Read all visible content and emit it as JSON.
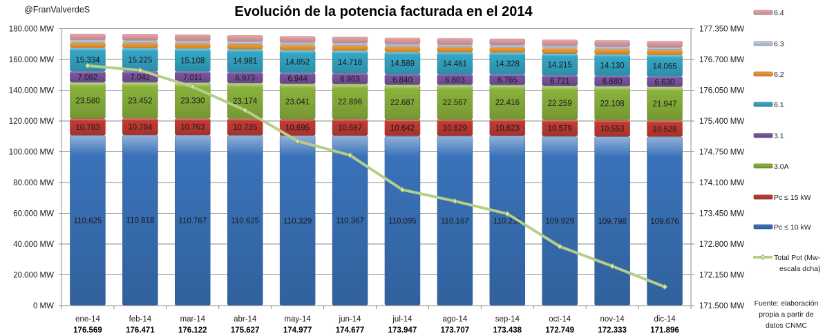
{
  "header": {
    "handle": "@FranValverdeS"
  },
  "source_note": [
    "Fuente: elaboración",
    "propia a partir de",
    "datos CNMC"
  ],
  "chart_data": {
    "type": "bar",
    "subtype": "stacked-bar-with-line-secondary-axis",
    "title": "Evolución de la potencia facturada en el 2014",
    "xlabel": "",
    "ylabel": "",
    "unit": "MW",
    "grid": true,
    "legend_position": "right",
    "categories": [
      "ene-14",
      "feb-14",
      "mar-14",
      "abr-14",
      "may-14",
      "jun-14",
      "jul-14",
      "ago-14",
      "sep-14",
      "oct-14",
      "nov-14",
      "dic-14"
    ],
    "left_axis": {
      "ylim": [
        0,
        180000
      ],
      "ticks": [
        0,
        20000,
        40000,
        60000,
        80000,
        100000,
        120000,
        140000,
        160000,
        180000
      ],
      "tick_labels": [
        "0 MW",
        "20.000 MW",
        "40.000 MW",
        "60.000 MW",
        "80.000 MW",
        "100.000 MW",
        "120.000 MW",
        "140.000 MW",
        "160.000 MW",
        "180.000 MW"
      ]
    },
    "right_axis": {
      "ylim": [
        171500,
        177350
      ],
      "ticks": [
        171500,
        172150,
        172800,
        173450,
        174100,
        174750,
        175400,
        176050,
        176700,
        177350
      ],
      "tick_labels": [
        "171.500 MW",
        "172.150 MW",
        "172.800 MW",
        "173.450 MW",
        "174.100 MW",
        "174.750 MW",
        "175.400 MW",
        "176.050 MW",
        "176.700 MW",
        "177.350 MW"
      ]
    },
    "series": [
      {
        "name": "Pc ≤ 10 kW",
        "color": "#3a72b9",
        "show_labels": true,
        "values": [
          110625,
          110818,
          110767,
          110625,
          110329,
          110367,
          110095,
          110167,
          110255,
          109929,
          109798,
          109676
        ]
      },
      {
        "name": "Pc ≤ 15 kW",
        "color": "#c23b34",
        "show_labels": true,
        "values": [
          10783,
          10784,
          10763,
          10735,
          10695,
          10687,
          10642,
          10629,
          10623,
          10579,
          10553,
          10528
        ]
      },
      {
        "name": "3.0A",
        "color": "#8ab23c",
        "show_labels": true,
        "values": [
          23580,
          23452,
          23330,
          23174,
          23041,
          22896,
          22687,
          22567,
          22416,
          22259,
          22108,
          21947
        ]
      },
      {
        "name": "3.1",
        "color": "#7b54a1",
        "show_labels": true,
        "values": [
          7082,
          7042,
          7011,
          6973,
          6944,
          6903,
          6840,
          6803,
          6765,
          6721,
          6680,
          6630
        ]
      },
      {
        "name": "6.1",
        "color": "#35a6c6",
        "show_labels": true,
        "values": [
          15334,
          15225,
          15108,
          14981,
          14852,
          14718,
          14589,
          14461,
          14328,
          14215,
          14130,
          14065
        ]
      },
      {
        "name": "6.2",
        "color": "#f1992f",
        "show_labels": false,
        "estimated": true,
        "values": [
          3300,
          3290,
          3290,
          3290,
          3280,
          3280,
          3270,
          3270,
          3260,
          3260,
          3260,
          3260
        ]
      },
      {
        "name": "6.3",
        "color": "#b7cbe4",
        "show_labels": false,
        "estimated": true,
        "values": [
          1650,
          1650,
          1650,
          1650,
          1640,
          1640,
          1640,
          1630,
          1630,
          1630,
          1630,
          1630
        ]
      },
      {
        "name": "6.4",
        "color": "#e39fa4",
        "show_labels": false,
        "estimated": true,
        "values": [
          4215,
          4210,
          4203,
          4199,
          4196,
          4186,
          4184,
          4180,
          4161,
          4156,
          4174,
          4160
        ]
      }
    ],
    "line_series": {
      "name": "Total Pot (Mw- escala dcha)",
      "legend_lines": [
        "Total Pot (Mw-",
        "escala dcha)"
      ],
      "axis": "right",
      "color": "#b5cf88",
      "marker": "diamond",
      "values": [
        176569,
        176471,
        176122,
        175627,
        174977,
        174677,
        173947,
        173707,
        173438,
        172749,
        172333,
        171896
      ],
      "value_labels": [
        "176.569",
        "176.471",
        "176.122",
        "175.627",
        "174.977",
        "174.677",
        "173.947",
        "173.707",
        "173.438",
        "172.749",
        "172.333",
        "171.896"
      ]
    },
    "legend_order": [
      "6.4",
      "6.3",
      "6.2",
      "6.1",
      "3.1",
      "3.0A",
      "Pc ≤ 15 kW",
      "Pc ≤ 10 kW",
      "Total Pot (Mw- escala dcha)"
    ]
  }
}
